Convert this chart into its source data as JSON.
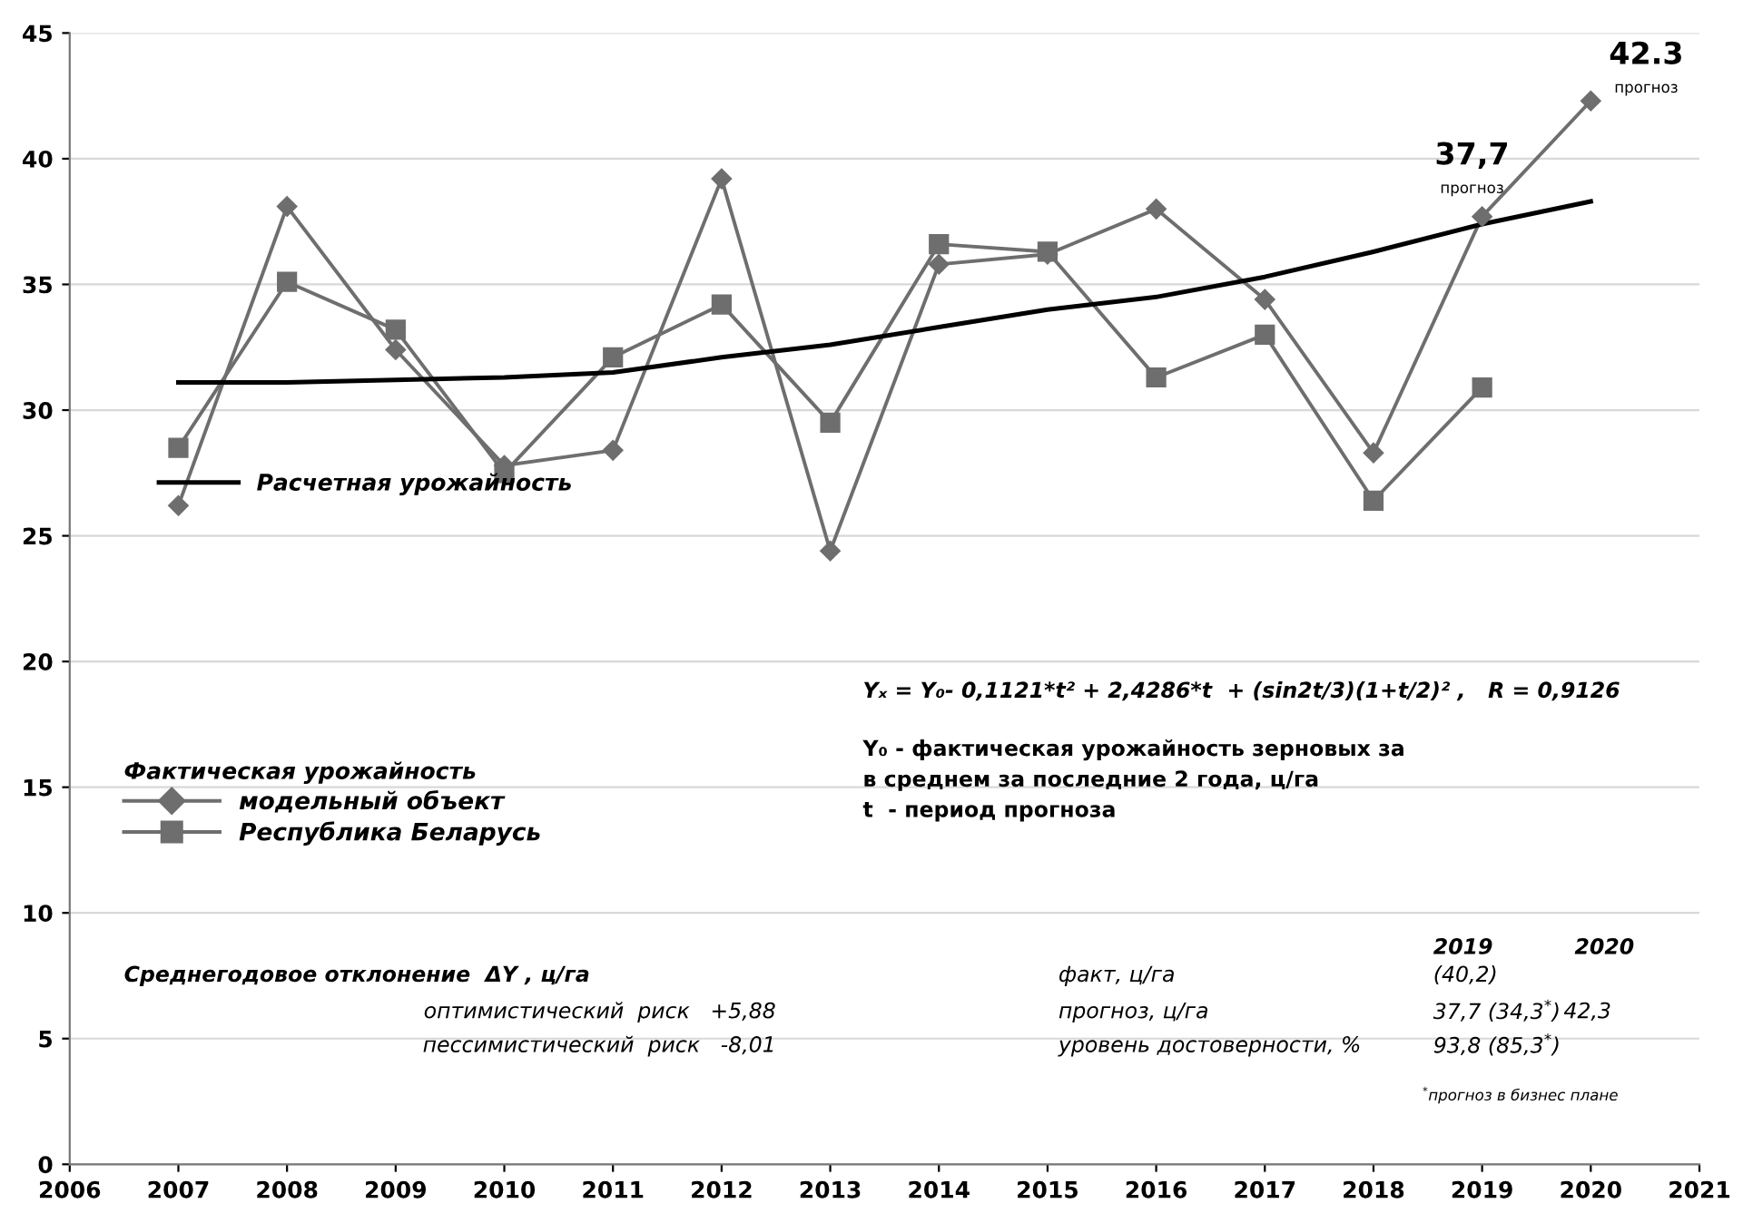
{
  "chart_data": {
    "type": "line",
    "x": [
      2007,
      2008,
      2009,
      2010,
      2011,
      2012,
      2013,
      2014,
      2015,
      2016,
      2017,
      2018,
      2019,
      2020
    ],
    "series": [
      {
        "name": "модельный объект",
        "color": "#6e6e6e",
        "marker": "diamond",
        "values": [
          26.2,
          38.1,
          32.4,
          27.8,
          28.4,
          39.2,
          24.4,
          35.8,
          36.2,
          38.0,
          34.4,
          28.3,
          37.7,
          42.3
        ],
        "value_labels": [
          null,
          null,
          null,
          null,
          null,
          null,
          null,
          null,
          null,
          null,
          null,
          null,
          "37,7",
          "42.3"
        ]
      },
      {
        "name": "Республика Беларусь",
        "color": "#6e6e6e",
        "marker": "square",
        "values": [
          28.5,
          35.1,
          33.2,
          27.5,
          32.1,
          34.2,
          29.5,
          36.6,
          36.3,
          31.3,
          33.0,
          26.4,
          30.9,
          null
        ]
      },
      {
        "name": "Расчетная урожайность",
        "color": "#000000",
        "marker": "none",
        "values": [
          31.1,
          31.1,
          31.2,
          31.3,
          31.5,
          32.1,
          32.6,
          33.3,
          34.0,
          34.5,
          35.3,
          36.3,
          37.4,
          38.3
        ]
      }
    ],
    "xlim": [
      2006,
      2021
    ],
    "xticks": [
      2006,
      2007,
      2008,
      2009,
      2010,
      2011,
      2012,
      2013,
      2014,
      2015,
      2016,
      2017,
      2018,
      2019,
      2020,
      2021
    ],
    "ylim": [
      0,
      45
    ],
    "yticks": [
      0,
      5,
      10,
      15,
      20,
      25,
      30,
      35,
      40,
      45
    ],
    "grid": "y",
    "legend": "center left",
    "legend_title": "Фактическая урожайность",
    "annotations": [
      "Yₓ = Y₀- 0,1121*t² + 2,4286*t  + (sin2t/3)(1+t/2)² ,   R = 0,9126",
      "Y₀ - фактическая урожайность зерновых за\nв среднем за последние 2 года, ц/га\nt  - период прогноза",
      "Среднегодовое отклонение  ΔY , ц/га",
      "оптимистический  риск   +5,88",
      "пессимистический  риск   -8,01",
      "2019",
      "2020",
      "факт, ц/га",
      "(40,2)",
      "прогноз, ц/га",
      "37,7 (34,3$^{*}$)",
      "42,3",
      "уровень достоверности, %",
      "93,8 (85,3$^{*}$)",
      "$^{*}$прогноз в бизнес плане",
      {
        "text": "прогноз",
        "x": 2019,
        "y": 37.7
      },
      {
        "text": "прогноз",
        "x": 2020,
        "y": 42.3
      }
    ]
  }
}
